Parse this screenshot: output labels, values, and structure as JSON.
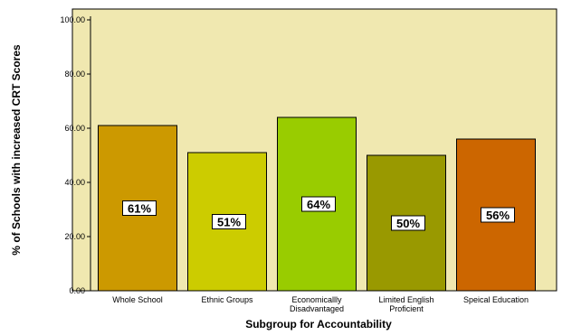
{
  "chart_data": {
    "type": "bar",
    "title": "",
    "xlabel": "Subgroup for Accountability",
    "ylabel": "% of Schools with increased CRT Scores",
    "categories": [
      [
        "Whole School"
      ],
      [
        "Ethnic Groups"
      ],
      [
        "Economicallly",
        "Disadvantaged"
      ],
      [
        "Limited English",
        "Proficient"
      ],
      [
        "Speical Education"
      ]
    ],
    "values": [
      61,
      51,
      64,
      50,
      56
    ],
    "data_labels": [
      "61%",
      "51%",
      "64%",
      "50%",
      "56%"
    ],
    "bar_colors": [
      "#cc9900",
      "#cccc00",
      "#99cc00",
      "#999900",
      "#cc6600"
    ],
    "ylim": [
      0,
      100
    ],
    "yticks": [
      0,
      20,
      40,
      60,
      80,
      100
    ],
    "ytick_labels": [
      "0.00",
      "20.00",
      "40.00",
      "60.00",
      "80.00",
      "100.00"
    ],
    "grid": false,
    "legend": "none",
    "plot_background": "#f0e8b0"
  }
}
